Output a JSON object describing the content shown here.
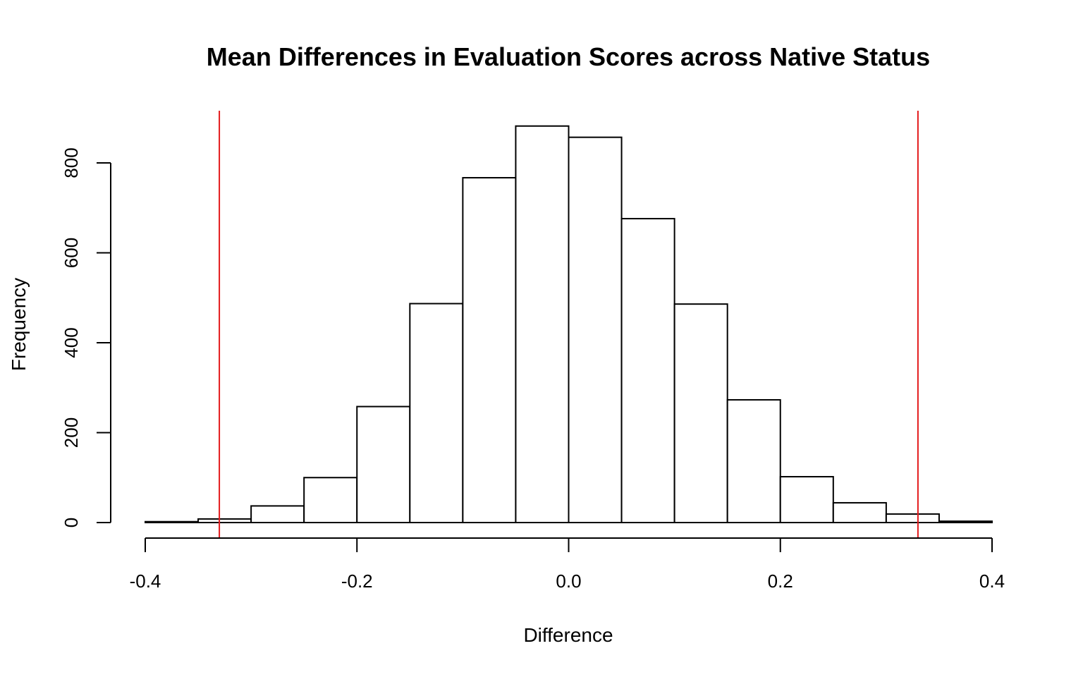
{
  "chart_data": {
    "type": "bar",
    "title": "Mean Differences in Evaluation Scores across Native Status",
    "xlabel": "Difference",
    "ylabel": "Frequency",
    "xlim": [
      -0.4,
      0.4
    ],
    "ylim": [
      0,
      920
    ],
    "x_ticks": [
      -0.4,
      -0.2,
      0.0,
      0.2,
      0.4
    ],
    "x_tick_labels": [
      "-0.4",
      "-0.2",
      "0.0",
      "0.2",
      "0.4"
    ],
    "y_ticks": [
      0,
      200,
      400,
      600,
      800
    ],
    "y_tick_labels": [
      "0",
      "200",
      "400",
      "600",
      "800"
    ],
    "bin_edges": [
      -0.4,
      -0.35,
      -0.3,
      -0.25,
      -0.2,
      -0.15,
      -0.1,
      -0.05,
      0.0,
      0.05,
      0.1,
      0.15,
      0.2,
      0.25,
      0.3,
      0.35,
      0.4
    ],
    "values": [
      2,
      8,
      37,
      100,
      258,
      487,
      767,
      882,
      857,
      676,
      486,
      273,
      102,
      44,
      19,
      3
    ],
    "reference_lines": [
      -0.33,
      0.33
    ],
    "reference_line_color": "#e41a1c",
    "grid": false
  }
}
